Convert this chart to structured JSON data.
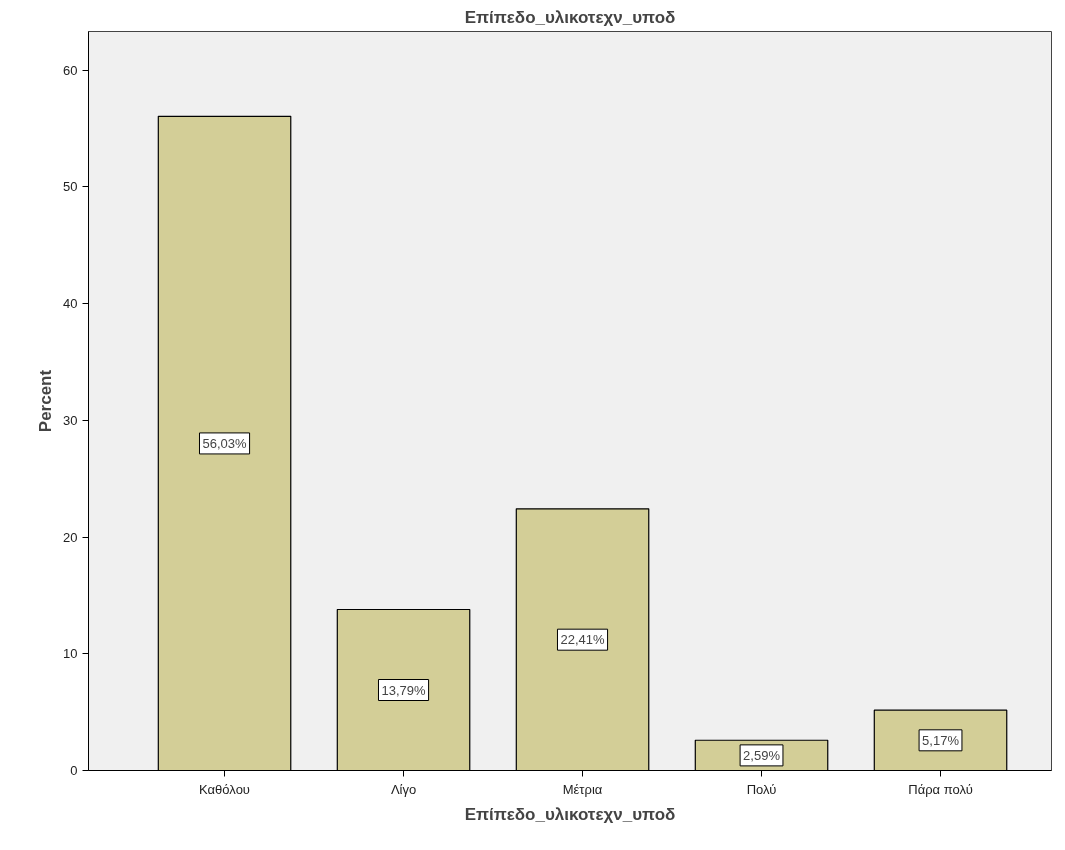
{
  "chart_data": {
    "type": "bar",
    "title": "Επίπεδο_υλικοτεχν_υποδ",
    "xlabel": "Επίπεδο_υλικοτεχν_υποδ",
    "ylabel": "Percent",
    "categories": [
      "Καθόλου",
      "Λίγο",
      "Μέτρια",
      "Πολύ",
      "Πάρα πολύ"
    ],
    "values": [
      56.03,
      13.79,
      22.41,
      2.59,
      5.17
    ],
    "value_labels": [
      "56,03%",
      "13,79%",
      "22,41%",
      "2,59%",
      "5,17%"
    ],
    "color": "#d3ce97",
    "ylim": [
      0,
      63.3
    ],
    "yticks": [
      0,
      10,
      20,
      30,
      40,
      50,
      60
    ]
  }
}
